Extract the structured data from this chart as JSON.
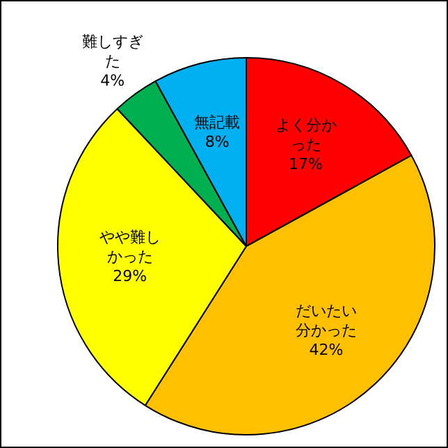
{
  "chart_data": {
    "type": "pie",
    "categories": [
      "よく分かった",
      "だいたい分かった",
      "やや難しかった",
      "難しすぎた",
      "無記載"
    ],
    "values": [
      17,
      42,
      29,
      4,
      8
    ],
    "value_labels": [
      "17%",
      "42%",
      "29%",
      "4%",
      "8%"
    ],
    "colors": [
      "#ff0000",
      "#ffc000",
      "#ffff00",
      "#00b050",
      "#00b0f0"
    ],
    "data_labels": true,
    "legend": false
  }
}
